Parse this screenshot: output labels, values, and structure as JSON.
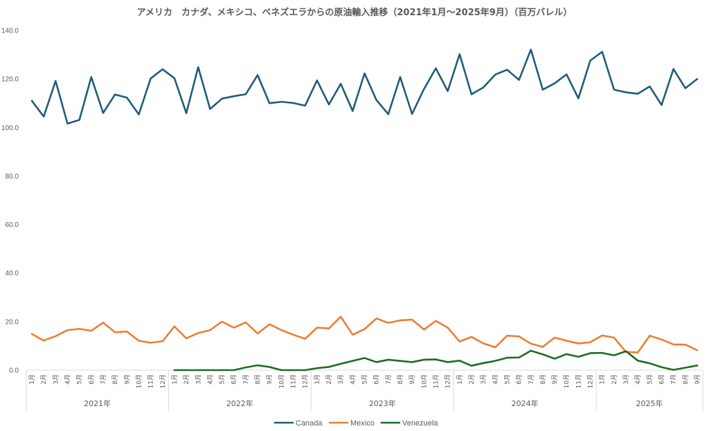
{
  "chart_data": {
    "type": "line",
    "title": "アメリカ　カナダ、メキシコ、ベネズエラからの原油輸入推移（2021年1月～2025年9月）（百万バレル）",
    "ylim": [
      0,
      140
    ],
    "yticks": [
      "0.0",
      "20.0",
      "40.0",
      "60.0",
      "80.0",
      "100.0",
      "120.0",
      "140.0"
    ],
    "grid": false,
    "legend": "bottom",
    "months": [
      "1月",
      "2月",
      "3月",
      "4月",
      "5月",
      "6月",
      "7月",
      "8月",
      "9月",
      "10月",
      "11月",
      "12月"
    ],
    "years": [
      "2021年",
      "2022年",
      "2023年",
      "2024年",
      "2025年"
    ],
    "months_last_year": 9,
    "series": [
      {
        "name": "Canada",
        "color": "#1f5c7a",
        "values": [
          111.0,
          104.5,
          119.2,
          101.6,
          103.1,
          120.8,
          106.0,
          113.6,
          112.3,
          105.4,
          120.2,
          124.0,
          120.3,
          105.9,
          124.9,
          107.6,
          111.9,
          112.9,
          113.7,
          121.6,
          110.0,
          110.6,
          110.1,
          109.0,
          119.4,
          109.5,
          118.0,
          106.8,
          122.3,
          111.3,
          105.5,
          120.8,
          105.6,
          115.8,
          124.4,
          115.0,
          130.2,
          113.7,
          116.5,
          121.8,
          123.8,
          119.6,
          132.1,
          115.6,
          118.2,
          121.9,
          112.0,
          127.6,
          131.2,
          115.6,
          114.5,
          113.9,
          116.9,
          109.3,
          124.1,
          116.2,
          120.0
        ]
      },
      {
        "name": "Mexico",
        "color": "#ed7d31",
        "values": [
          14.9,
          12.2,
          14.0,
          16.5,
          17.0,
          16.2,
          19.6,
          15.6,
          15.9,
          12.1,
          11.3,
          11.9,
          18.0,
          13.1,
          15.3,
          16.5,
          20.0,
          17.5,
          19.7,
          15.1,
          18.9,
          16.5,
          14.6,
          12.9,
          17.5,
          17.2,
          22.0,
          14.6,
          16.9,
          21.3,
          19.5,
          20.5,
          20.8,
          16.7,
          20.3,
          17.5,
          11.8,
          13.7,
          11.0,
          9.4,
          14.2,
          13.9,
          10.9,
          9.6,
          13.4,
          12.1,
          11.0,
          11.5,
          14.3,
          13.4,
          7.5,
          7.3,
          14.2,
          12.6,
          10.6,
          10.5,
          8.2
        ]
      },
      {
        "name": "Venezuela",
        "color": "#1e6b24",
        "values": [
          null,
          null,
          null,
          null,
          null,
          null,
          null,
          null,
          null,
          null,
          null,
          null,
          0.0,
          0.0,
          0.0,
          0.0,
          0.0,
          0.0,
          1.1,
          2.0,
          1.3,
          0.0,
          0.0,
          0.0,
          0.8,
          1.3,
          2.6,
          3.8,
          5.0,
          3.3,
          4.3,
          3.8,
          3.3,
          4.3,
          4.4,
          3.3,
          3.9,
          1.8,
          2.9,
          3.8,
          5.1,
          5.2,
          8.0,
          6.5,
          4.7,
          6.6,
          5.5,
          7.0,
          7.1,
          6.1,
          7.8,
          3.9,
          2.8,
          1.2,
          0.1,
          1.0,
          1.9
        ]
      }
    ]
  }
}
